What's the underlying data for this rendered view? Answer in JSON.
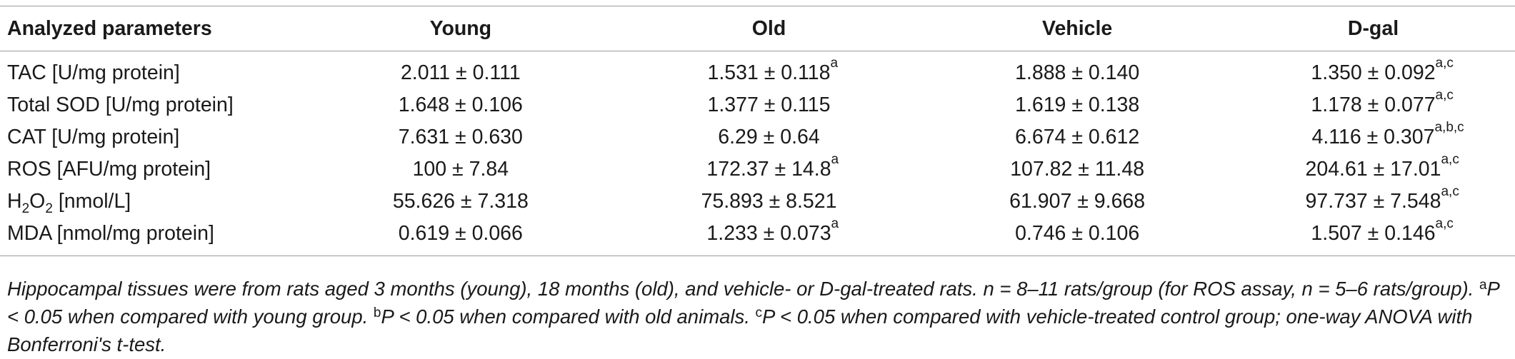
{
  "table": {
    "headers": [
      "Analyzed parameters",
      "Young",
      "Old",
      "Vehicle",
      "D-gal"
    ],
    "rows": [
      {
        "param": {
          "main": "TAC [U/mg protein]"
        },
        "cells": [
          {
            "value": "2.011 ± 0.111",
            "sup": ""
          },
          {
            "value": "1.531 ± 0.118",
            "sup": "a"
          },
          {
            "value": "1.888 ± 0.140",
            "sup": ""
          },
          {
            "value": "1.350 ± 0.092",
            "sup": "a,c"
          }
        ]
      },
      {
        "param": {
          "main": "Total SOD [U/mg protein]"
        },
        "cells": [
          {
            "value": "1.648 ± 0.106",
            "sup": ""
          },
          {
            "value": "1.377 ± 0.115",
            "sup": ""
          },
          {
            "value": "1.619 ± 0.138",
            "sup": ""
          },
          {
            "value": "1.178 ± 0.077",
            "sup": "a,c"
          }
        ]
      },
      {
        "param": {
          "main": "CAT [U/mg protein]"
        },
        "cells": [
          {
            "value": "7.631 ± 0.630",
            "sup": ""
          },
          {
            "value": "6.29 ± 0.64",
            "sup": ""
          },
          {
            "value": "6.674 ± 0.612",
            "sup": ""
          },
          {
            "value": "4.116 ± 0.307",
            "sup": "a,b,c"
          }
        ]
      },
      {
        "param": {
          "main": "ROS [AFU/mg protein]"
        },
        "cells": [
          {
            "value": "100 ± 7.84",
            "sup": ""
          },
          {
            "value": "172.37 ± 14.8",
            "sup": "a"
          },
          {
            "value": "107.82 ± 11.48",
            "sup": ""
          },
          {
            "value": "204.61 ± 17.01",
            "sup": "a,c"
          }
        ]
      },
      {
        "param": {
          "main": "H",
          "sub": "2",
          "main2": "O",
          "sub2": "2",
          "rest": " [nmol/L]"
        },
        "cells": [
          {
            "value": "55.626 ± 7.318",
            "sup": ""
          },
          {
            "value": "75.893 ± 8.521",
            "sup": ""
          },
          {
            "value": "61.907 ± 9.668",
            "sup": ""
          },
          {
            "value": "97.737 ± 7.548",
            "sup": "a,c"
          }
        ]
      },
      {
        "param": {
          "main": "MDA [nmol/mg protein]"
        },
        "cells": [
          {
            "value": "0.619 ± 0.066",
            "sup": ""
          },
          {
            "value": "1.233 ± 0.073",
            "sup": "a"
          },
          {
            "value": "0.746 ± 0.106",
            "sup": ""
          },
          {
            "value": "1.507 ± 0.146",
            "sup": "a,c"
          }
        ]
      }
    ]
  },
  "footnote": {
    "line1": "Hippocampal tissues were from rats aged 3 months (young), 18 months (old), and vehicle- or D-gal-treated rats. n = 8–11 rats/group (for ROS assay, n = 5–6 rats/group).",
    "sup_a": "a",
    "text_a": "P < 0.05 when compared with young group. ",
    "sup_b": "b",
    "text_b": "P < 0.05 when compared with old animals. ",
    "sup_c": "c",
    "text_c": "P < 0.05 when compared with vehicle-treated control group; one-way ANOVA with Bonferroni's t-test."
  }
}
